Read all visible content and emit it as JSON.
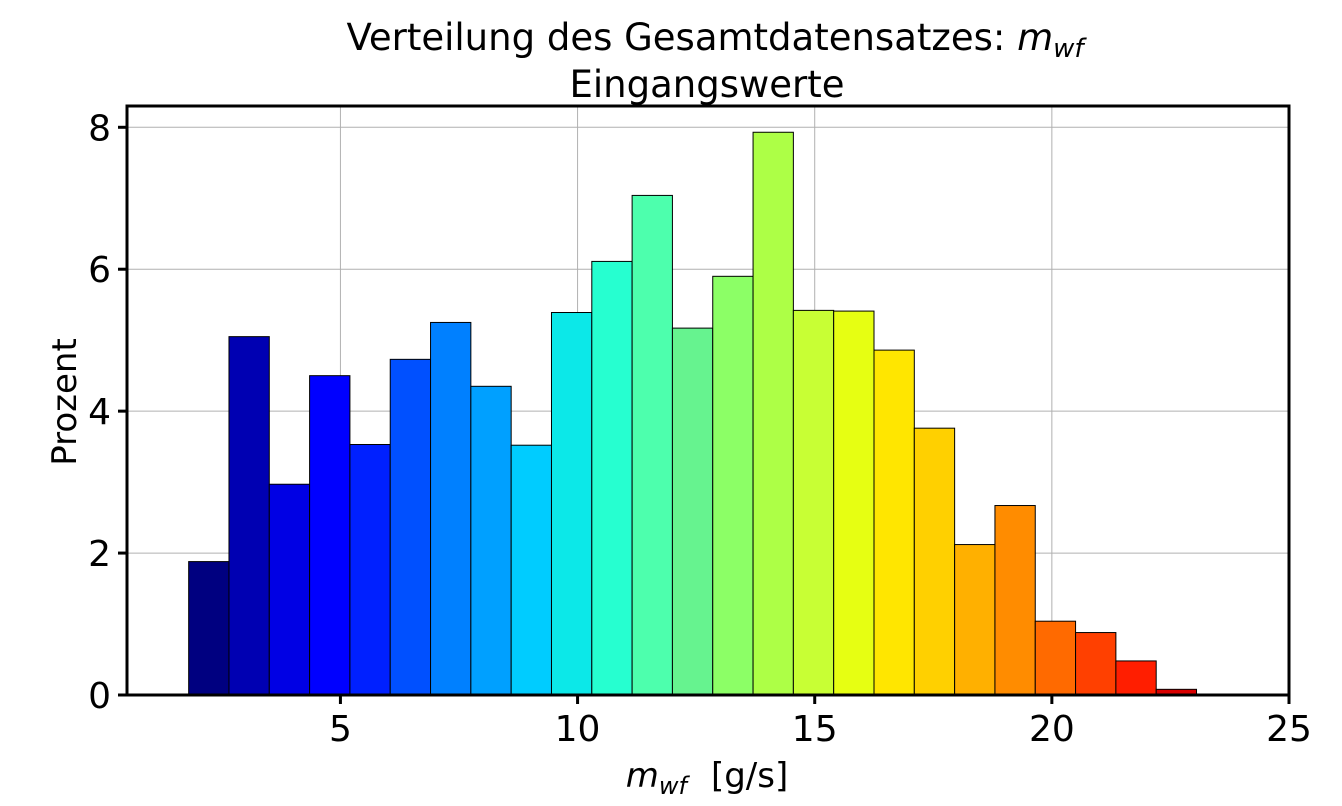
{
  "chart_data": {
    "type": "bar",
    "title_main": "Verteilung des Gesamtdatensatzes: ",
    "title_sym": "m",
    "title_sub": "wf",
    "subtitle": "Eingangswerte",
    "xlabel_sym": "m",
    "xlabel_sub": "wf",
    "xlabel_unit": "[g/s]",
    "ylabel": "Prozent",
    "xlim": [
      0.5,
      25
    ],
    "ylim": [
      0,
      8.3
    ],
    "xticks": [
      5,
      10,
      15,
      20,
      25
    ],
    "yticks": [
      0,
      2,
      4,
      6,
      8
    ],
    "grid": true,
    "bin_edges": [
      1.8,
      2.65,
      3.5,
      4.35,
      5.2,
      6.05,
      6.9,
      7.75,
      8.6,
      9.45,
      10.3,
      11.15,
      12.0,
      12.85,
      13.7,
      14.55,
      15.4,
      16.25,
      17.1,
      17.95,
      18.8,
      19.65,
      20.5,
      21.35,
      22.2,
      23.05,
      23.9
    ],
    "values": [
      1.88,
      5.05,
      2.97,
      4.5,
      3.53,
      4.73,
      5.25,
      4.35,
      3.52,
      5.39,
      6.11,
      7.04,
      5.17,
      5.9,
      7.93,
      5.42,
      5.41,
      4.86,
      3.76,
      2.12,
      2.67,
      1.04,
      0.88,
      0.48,
      0.08,
      0.01
    ],
    "colors": [
      "#000080",
      "#0000b2",
      "#0000e4",
      "#0000ff",
      "#0020ff",
      "#0050ff",
      "#0080ff",
      "#00a0ff",
      "#00ccff",
      "#0ce8e8",
      "#26ffd0",
      "#4dffad",
      "#66f38f",
      "#8cff66",
      "#adff46",
      "#c8ff34",
      "#e6ff12",
      "#ffe600",
      "#ffd000",
      "#ffb000",
      "#ff8c00",
      "#ff6a00",
      "#ff4000",
      "#ff1e00",
      "#d90000",
      "#a00000"
    ]
  }
}
